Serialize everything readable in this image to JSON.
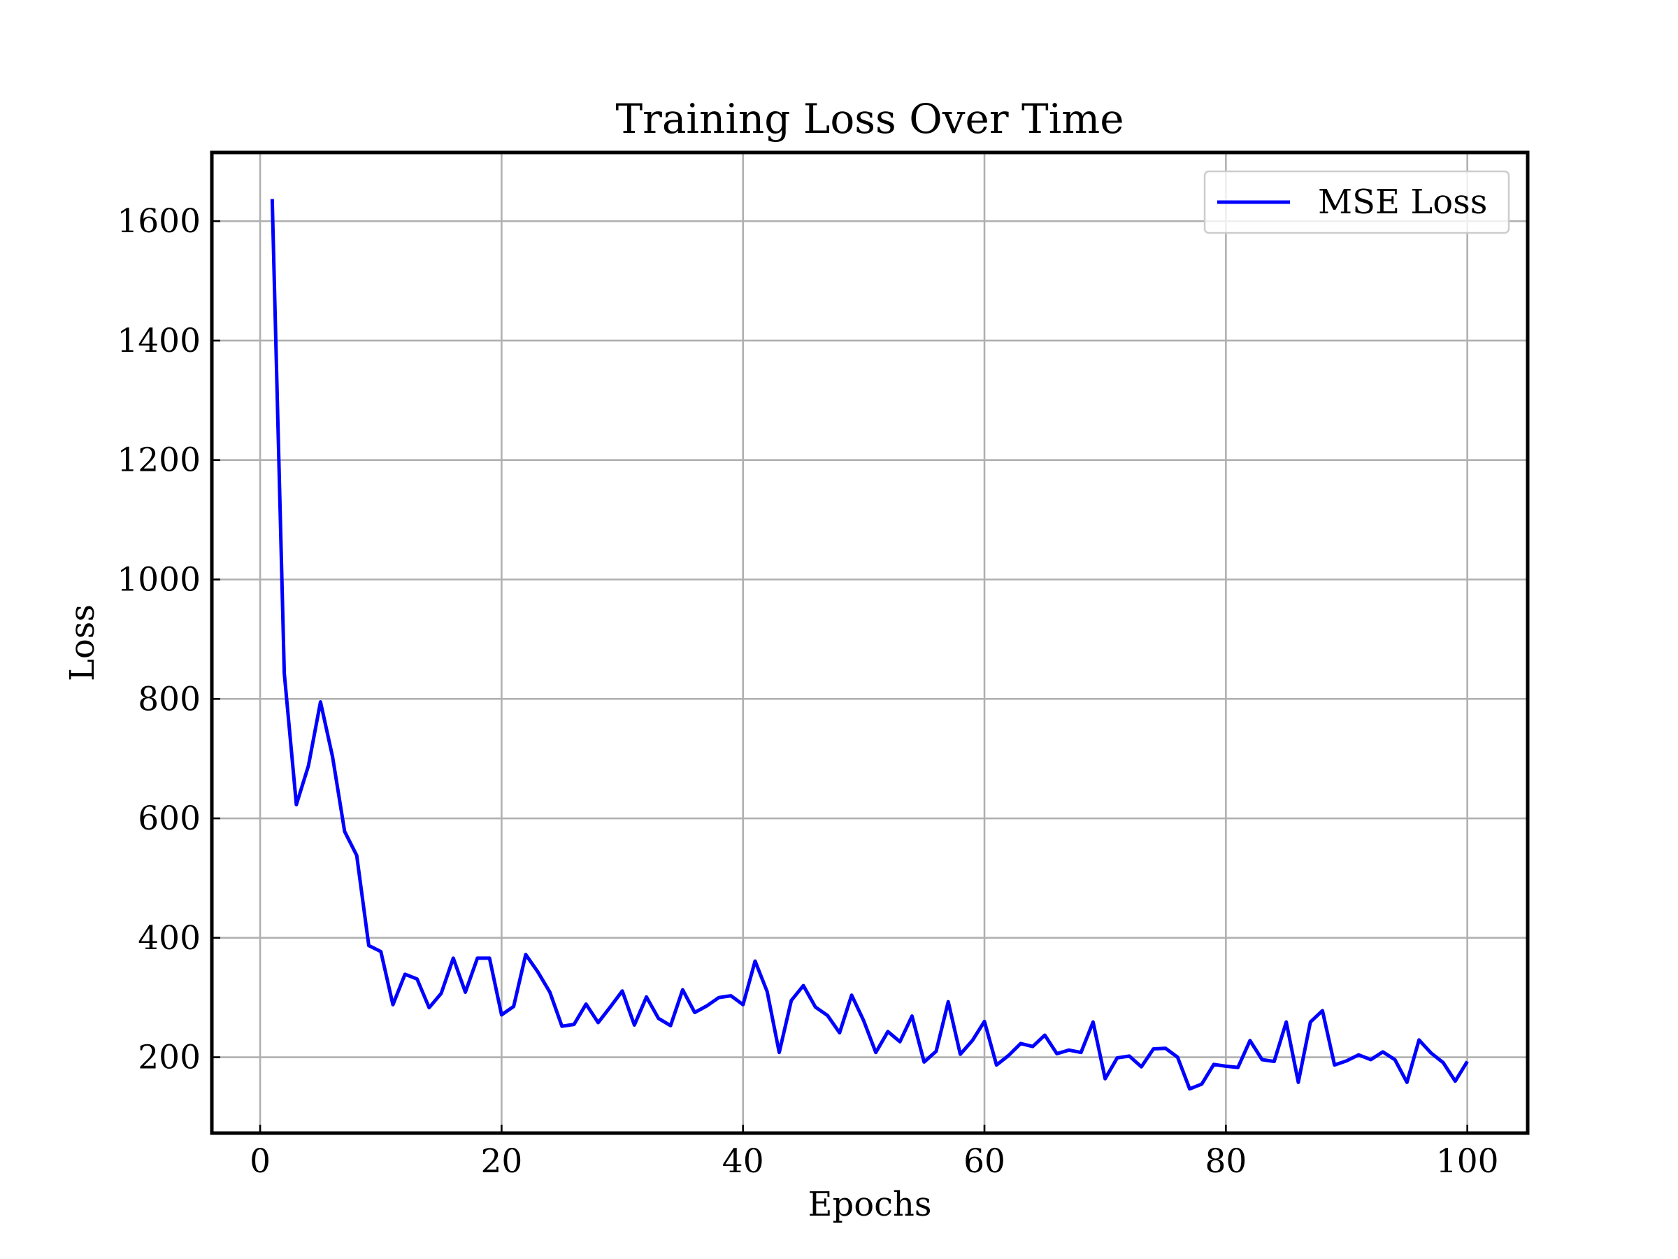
{
  "chart_data": {
    "type": "line",
    "title": "Training Loss Over Time",
    "xlabel": "Epochs",
    "ylabel": "Loss",
    "xlim": [
      -4,
      105
    ],
    "ylim": [
      73,
      1715
    ],
    "xticks": [
      0,
      20,
      40,
      60,
      80,
      100
    ],
    "yticks": [
      200,
      400,
      600,
      800,
      1000,
      1200,
      1400,
      1600
    ],
    "grid": true,
    "legend_position": "top-right",
    "series": [
      {
        "name": "MSE Loss",
        "color": "#0000ff",
        "x": [
          1,
          2,
          3,
          4,
          5,
          6,
          7,
          8,
          9,
          10,
          11,
          12,
          13,
          14,
          15,
          16,
          17,
          18,
          19,
          20,
          21,
          22,
          23,
          24,
          25,
          26,
          27,
          28,
          29,
          30,
          31,
          32,
          33,
          34,
          35,
          36,
          37,
          38,
          39,
          40,
          41,
          42,
          43,
          44,
          45,
          46,
          47,
          48,
          49,
          50,
          51,
          52,
          53,
          54,
          55,
          56,
          57,
          58,
          59,
          60,
          61,
          62,
          63,
          64,
          65,
          66,
          67,
          68,
          69,
          70,
          71,
          72,
          73,
          74,
          75,
          76,
          77,
          78,
          79,
          80,
          81,
          82,
          83,
          84,
          85,
          86,
          87,
          88,
          89,
          90,
          91,
          92,
          93,
          94,
          95,
          96,
          97,
          98,
          99,
          100
        ],
        "y": [
          1637,
          843,
          623,
          688,
          795,
          703,
          578,
          538,
          387,
          377,
          288,
          339,
          331,
          283,
          307,
          366,
          309,
          366,
          366,
          271,
          285,
          372,
          343,
          309,
          252,
          255,
          289,
          258,
          284,
          311,
          254,
          301,
          265,
          253,
          313,
          275,
          286,
          300,
          303,
          288,
          361,
          310,
          208,
          295,
          320,
          284,
          270,
          241,
          304,
          261,
          208,
          243,
          226,
          269,
          192,
          210,
          293,
          205,
          228,
          260,
          187,
          203,
          223,
          218,
          237,
          206,
          212,
          208,
          259,
          164,
          199,
          202,
          184,
          214,
          215,
          200,
          147,
          155,
          188,
          185,
          183,
          228,
          196,
          193,
          259,
          158,
          259,
          278,
          187,
          194,
          204,
          196,
          209,
          196,
          158,
          229,
          207,
          191,
          160,
          193
        ]
      }
    ]
  }
}
